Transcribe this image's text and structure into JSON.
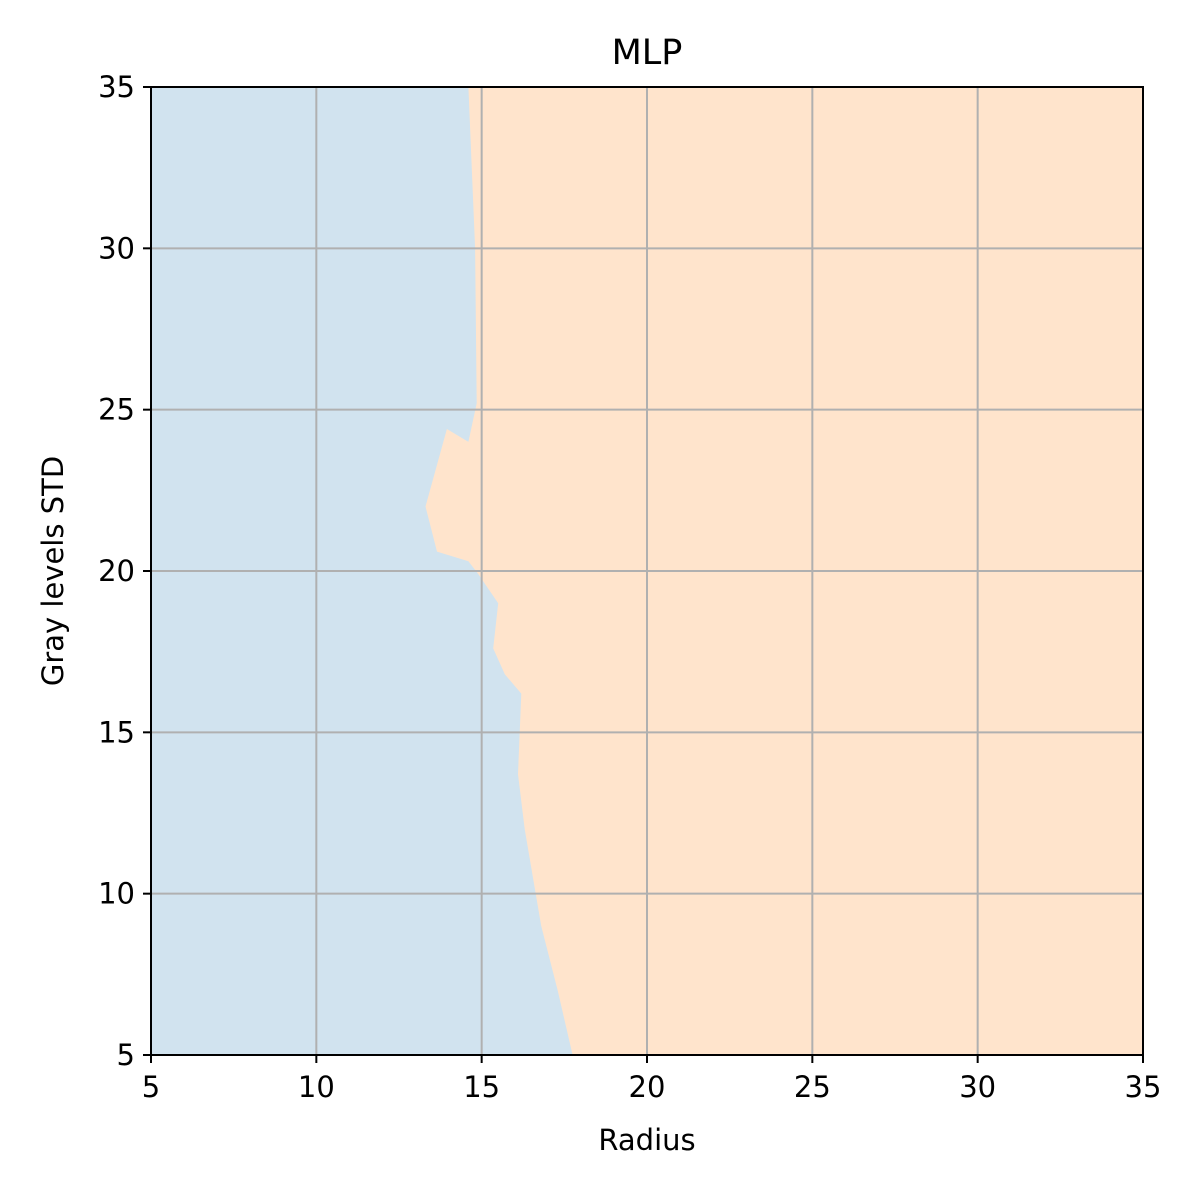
{
  "chart_data": {
    "type": "area",
    "title": "MLP",
    "xlabel": "Radius",
    "ylabel": "Gray levels STD",
    "xlim": [
      5,
      35
    ],
    "ylim": [
      5,
      35
    ],
    "xticks": [
      5,
      10,
      15,
      20,
      25,
      30,
      35
    ],
    "yticks": [
      5,
      10,
      15,
      20,
      25,
      30,
      35
    ],
    "grid": true,
    "colors": {
      "class_left": "#d1e3ef",
      "class_right": "#ffe4cc",
      "grid": "#b0b0b0"
    },
    "decision_boundary": [
      {
        "x": 17.75,
        "y": 5.0
      },
      {
        "x": 17.3,
        "y": 7.0
      },
      {
        "x": 16.8,
        "y": 9.0
      },
      {
        "x": 16.3,
        "y": 12.0
      },
      {
        "x": 16.1,
        "y": 13.7
      },
      {
        "x": 16.2,
        "y": 16.2
      },
      {
        "x": 15.7,
        "y": 16.8
      },
      {
        "x": 15.35,
        "y": 17.6
      },
      {
        "x": 15.5,
        "y": 19.0
      },
      {
        "x": 14.9,
        "y": 19.9
      },
      {
        "x": 14.6,
        "y": 20.3
      },
      {
        "x": 13.65,
        "y": 20.6
      },
      {
        "x": 13.3,
        "y": 22.0
      },
      {
        "x": 13.95,
        "y": 24.4
      },
      {
        "x": 14.6,
        "y": 24.0
      },
      {
        "x": 14.85,
        "y": 25.2
      },
      {
        "x": 14.8,
        "y": 30.0
      },
      {
        "x": 14.6,
        "y": 35.0
      }
    ]
  }
}
